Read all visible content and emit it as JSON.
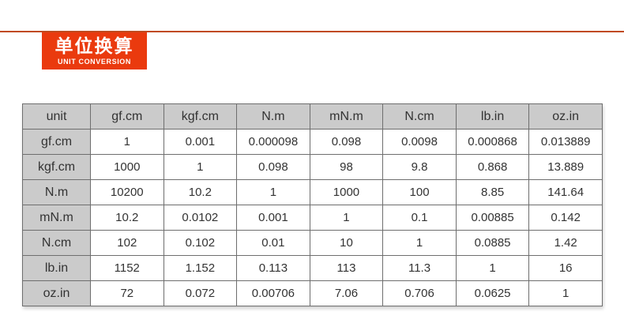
{
  "banner": {
    "title_zh": "单位换算",
    "title_en": "UNIT CONVERSION"
  },
  "colors": {
    "accent_red": "#ea3a0e",
    "divider_red": "#c04a1e",
    "header_gray": "#cbcbcb",
    "border_gray": "#6e6e6e",
    "text": "#333333"
  },
  "table": {
    "headers": [
      "unit",
      "gf.cm",
      "kgf.cm",
      "N.m",
      "mN.m",
      "N.cm",
      "lb.in",
      "oz.in"
    ],
    "rows": [
      {
        "label": "gf.cm",
        "values": [
          "1",
          "0.001",
          "0.000098",
          "0.098",
          "0.0098",
          "0.000868",
          "0.013889"
        ]
      },
      {
        "label": "kgf.cm",
        "values": [
          "1000",
          "1",
          "0.098",
          "98",
          "9.8",
          "0.868",
          "13.889"
        ]
      },
      {
        "label": "N.m",
        "values": [
          "10200",
          "10.2",
          "1",
          "1000",
          "100",
          "8.85",
          "141.64"
        ]
      },
      {
        "label": "mN.m",
        "values": [
          "10.2",
          "0.0102",
          "0.001",
          "1",
          "0.1",
          "0.00885",
          "0.142"
        ]
      },
      {
        "label": "N.cm",
        "values": [
          "102",
          "0.102",
          "0.01",
          "10",
          "1",
          "0.0885",
          "1.42"
        ]
      },
      {
        "label": "lb.in",
        "values": [
          "1152",
          "1.152",
          "0.113",
          "113",
          "11.3",
          "1",
          "16"
        ]
      },
      {
        "label": "oz.in",
        "values": [
          "72",
          "0.072",
          "0.00706",
          "7.06",
          "0.706",
          "0.0625",
          "1"
        ]
      }
    ]
  }
}
